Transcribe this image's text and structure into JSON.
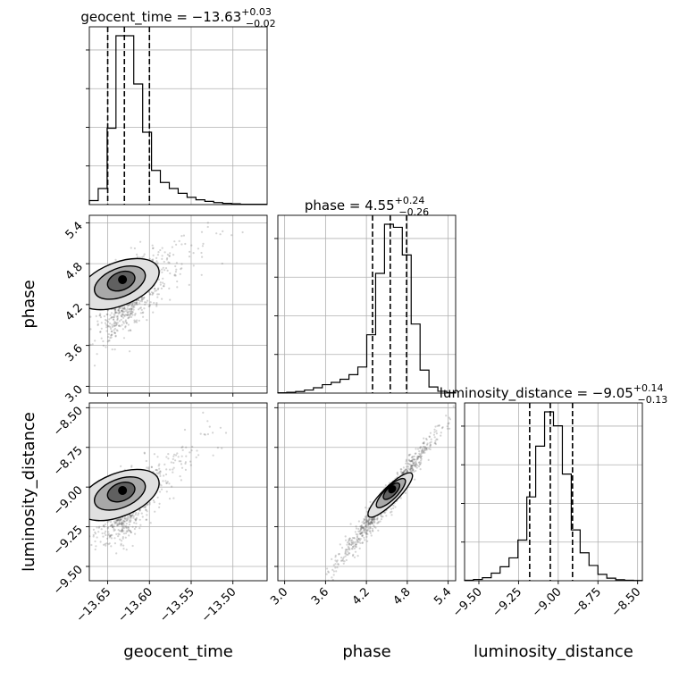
{
  "colors": {
    "ink": "#000000",
    "grid": "#b0b0b0",
    "scatter": "#555555",
    "density_levels": [
      "#e0e0e0",
      "#a8a8a8",
      "#606060",
      "#000000"
    ]
  },
  "titles": {
    "geocent_time": {
      "label": "geocent_time = −13.63",
      "sup": "+0.03",
      "sub": "−0.02"
    },
    "phase": {
      "label": "phase = 4.55",
      "sup": "+0.24",
      "sub": "−0.26"
    },
    "luminosity_distance": {
      "label": "luminosity_distance = −9.05",
      "sup": "+0.14",
      "sub": "−0.13"
    }
  },
  "chart_data": {
    "type": "corner",
    "parameters": [
      "geocent_time",
      "phase",
      "luminosity_distance"
    ],
    "axes": {
      "geocent_time": {
        "label": "geocent_time",
        "range": [
          -13.672,
          -13.459
        ],
        "ticks": [
          -13.65,
          -13.6,
          -13.55,
          -13.5
        ],
        "tick_labels": [
          "−13.65",
          "−13.60",
          "−13.55",
          "−13.50"
        ]
      },
      "phase": {
        "label": "phase",
        "range": [
          2.9,
          5.51
        ],
        "ticks": [
          3.0,
          3.6,
          4.2,
          4.8,
          5.4
        ],
        "tick_labels": [
          "3.0",
          "3.6",
          "4.2",
          "4.8",
          "5.4"
        ]
      },
      "luminosity_distance": {
        "label": "luminosity_distance",
        "range": [
          -9.59,
          -8.47
        ],
        "ticks": [
          -9.5,
          -9.25,
          -9.0,
          -8.75,
          -8.5
        ],
        "tick_labels": [
          "−9.50",
          "−9.25",
          "−9.00",
          "−8.75",
          "−8.50"
        ]
      }
    },
    "histograms": {
      "geocent_time": {
        "edges": [
          -13.672,
          -13.6614,
          -13.6507,
          -13.6401,
          -13.6294,
          -13.6188,
          -13.6081,
          -13.5975,
          -13.5869,
          -13.5762,
          -13.5656,
          -13.5549,
          -13.5443,
          -13.5336,
          -13.523,
          -13.5123,
          -13.5017,
          -13.4911,
          -13.4804,
          -13.4698,
          -13.4591
        ],
        "counts": [
          10,
          40,
          190,
          420,
          420,
          300,
          180,
          85,
          55,
          40,
          28,
          18,
          12,
          8,
          5,
          3,
          2,
          1,
          1,
          1
        ],
        "quantiles": [
          -13.65,
          -13.63,
          -13.6
        ]
      },
      "phase": {
        "edges": [
          2.9,
          3.0305,
          3.161,
          3.2915,
          3.422,
          3.5525,
          3.683,
          3.8135,
          3.944,
          4.0745,
          4.205,
          4.3355,
          4.466,
          4.5965,
          4.727,
          4.8575,
          4.988,
          5.1185,
          5.249,
          5.3795,
          5.51
        ],
        "counts": [
          2,
          5,
          10,
          20,
          35,
          55,
          70,
          90,
          120,
          170,
          380,
          780,
          1100,
          1080,
          900,
          450,
          150,
          40,
          12,
          3
        ],
        "quantiles": [
          4.29,
          4.55,
          4.79
        ]
      },
      "luminosity_distance": {
        "edges": [
          -9.59,
          -9.534,
          -9.478,
          -9.422,
          -9.366,
          -9.31,
          -9.254,
          -9.198,
          -9.142,
          -9.086,
          -9.03,
          -8.974,
          -8.918,
          -8.862,
          -8.806,
          -8.75,
          -8.694,
          -8.638,
          -8.582,
          -8.526,
          -8.47
        ],
        "counts": [
          2,
          5,
          12,
          30,
          55,
          90,
          160,
          330,
          530,
          665,
          610,
          420,
          200,
          110,
          60,
          25,
          10,
          4,
          2,
          1
        ],
        "quantiles": [
          -9.18,
          -9.05,
          -8.91
        ]
      }
    },
    "grid": true
  }
}
